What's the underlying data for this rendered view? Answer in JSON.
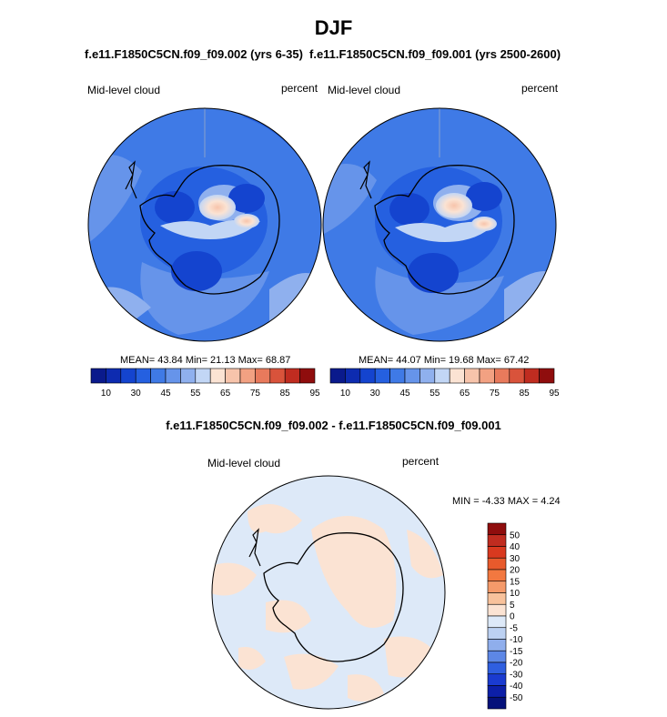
{
  "title": "DJF",
  "panels": [
    {
      "run": "f.e11.F1850C5CN.f09_f09.002 (yrs 6-35)",
      "variable": "Mid-level cloud",
      "units": "percent",
      "stats": "MEAN=  43.84  Min=  21.13  Max=  68.87"
    },
    {
      "run": "f.e11.F1850C5CN.f09_f09.001 (yrs 2500-2600)",
      "variable": "Mid-level cloud",
      "units": "percent",
      "stats": "MEAN=  44.07  Min=  19.68  Max=  67.42"
    }
  ],
  "colorbar": {
    "ticks": [
      "10",
      "30",
      "45",
      "55",
      "65",
      "75",
      "85",
      "95"
    ],
    "colors": [
      "#0a1a8c",
      "#0d2bb0",
      "#1444cf",
      "#2560e0",
      "#3f7ae6",
      "#6694ea",
      "#8fb0ee",
      "#c2d6f5",
      "#fbe3d3",
      "#f7c4ab",
      "#f2a182",
      "#e87a5c",
      "#d9533b",
      "#c02c20",
      "#8f0d0d"
    ]
  },
  "difference": {
    "title": "f.e11.F1850C5CN.f09_f09.002 - f.e11.F1850C5CN.f09_f09.001",
    "variable": "Mid-level cloud",
    "units": "percent",
    "stats": "MIN =  -4.33 MAX =   4.24",
    "ticks": [
      "50",
      "40",
      "30",
      "20",
      "15",
      "10",
      "5",
      "0",
      "-5",
      "-10",
      "-15",
      "-20",
      "-30",
      "-40",
      "-50"
    ],
    "colors": [
      "#8f0d0d",
      "#c02c20",
      "#d9391f",
      "#e85a2c",
      "#f27840",
      "#f59a6a",
      "#f8c29c",
      "#fbe3d3",
      "#dde9f8",
      "#bcd1f2",
      "#8faeec",
      "#5d87e6",
      "#2f5fe0",
      "#1a3bd0",
      "#0c1fa8",
      "#05117a"
    ]
  }
}
